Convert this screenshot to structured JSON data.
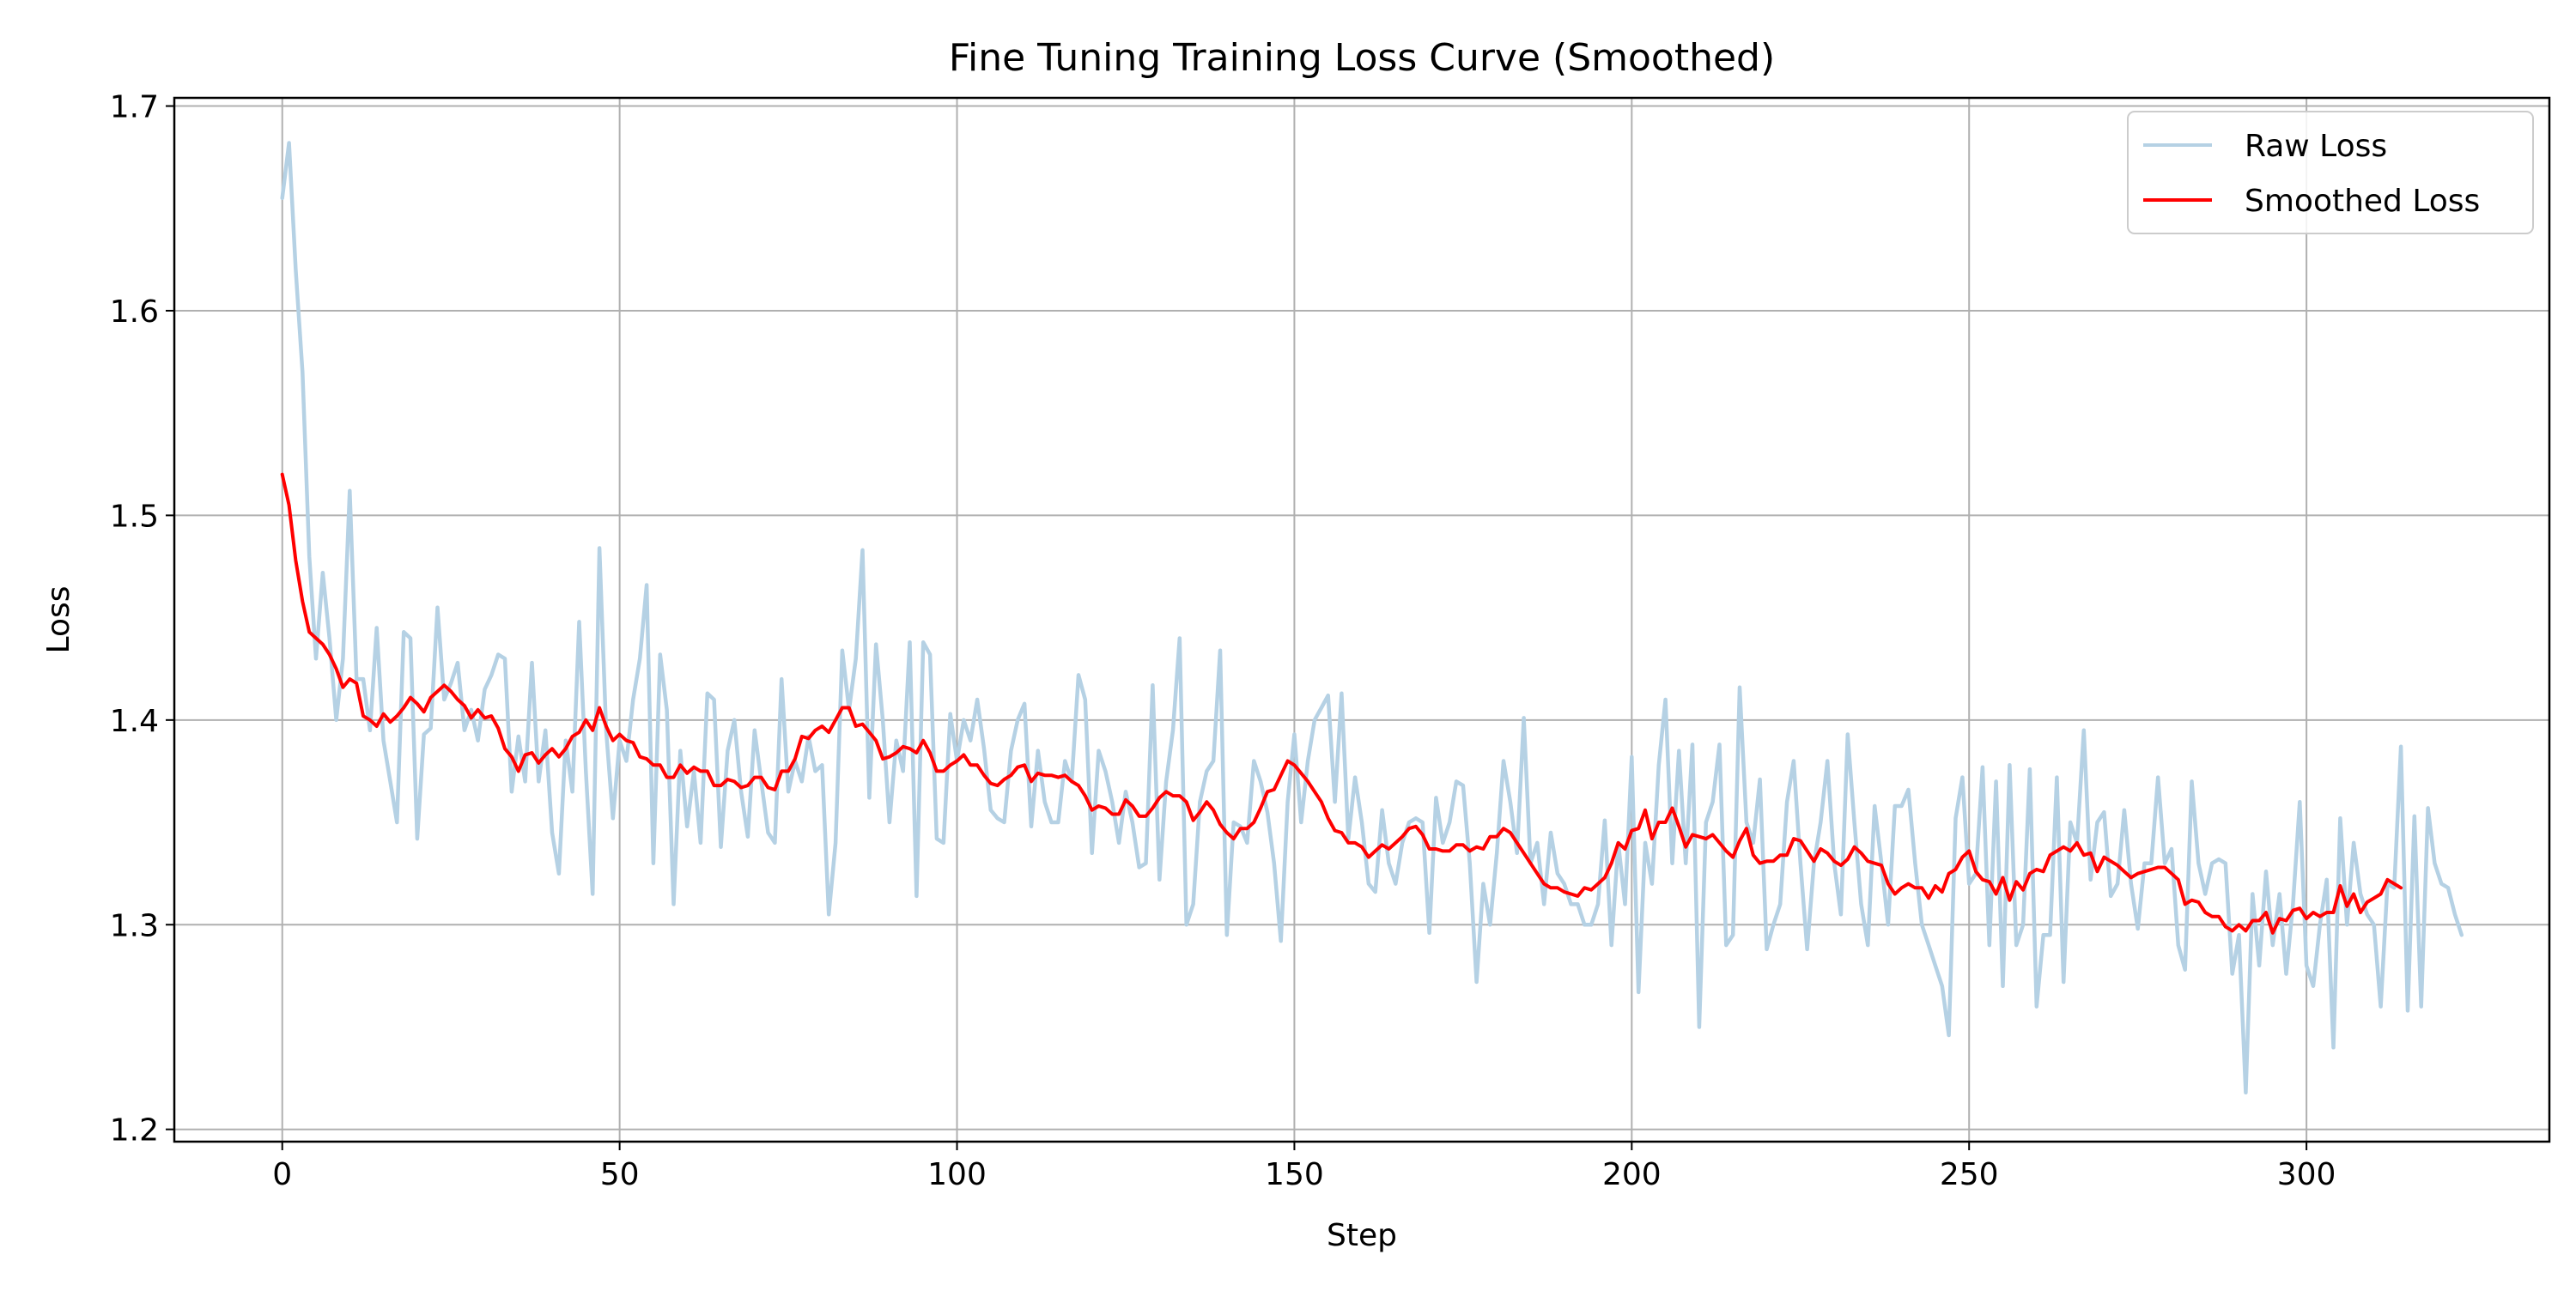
{
  "chart_data": {
    "type": "line",
    "title": "Fine Tuning Training Loss Curve (Smoothed)",
    "xlabel": "Step",
    "ylabel": "Loss",
    "xlim": [
      -16,
      336
    ],
    "ylim": [
      1.194,
      1.704
    ],
    "xticks": [
      0,
      50,
      100,
      150,
      200,
      250,
      300
    ],
    "xtick_labels": [
      "0",
      "50",
      "100",
      "150",
      "200",
      "250",
      "300"
    ],
    "yticks": [
      1.2,
      1.3,
      1.4,
      1.5,
      1.6,
      1.7
    ],
    "ytick_labels": [
      "1.2",
      "1.3",
      "1.4",
      "1.5",
      "1.6",
      "1.7"
    ],
    "grid": true,
    "legend_position": "top-right",
    "series": [
      {
        "name": "Raw Loss",
        "color": "#b5d1e4",
        "x_start": 0,
        "x_step": 1,
        "values": [
          1.655,
          1.682,
          1.62,
          1.57,
          1.48,
          1.43,
          1.472,
          1.44,
          1.4,
          1.43,
          1.512,
          1.42,
          1.42,
          1.395,
          1.445,
          1.39,
          1.37,
          1.35,
          1.443,
          1.44,
          1.342,
          1.393,
          1.396,
          1.455,
          1.41,
          1.418,
          1.428,
          1.395,
          1.405,
          1.39,
          1.415,
          1.422,
          1.432,
          1.43,
          1.365,
          1.392,
          1.37,
          1.428,
          1.37,
          1.395,
          1.345,
          1.325,
          1.39,
          1.365,
          1.448,
          1.375,
          1.315,
          1.484,
          1.395,
          1.352,
          1.39,
          1.38,
          1.41,
          1.43,
          1.466,
          1.33,
          1.432,
          1.405,
          1.31,
          1.385,
          1.348,
          1.375,
          1.34,
          1.413,
          1.41,
          1.338,
          1.385,
          1.4,
          1.365,
          1.343,
          1.395,
          1.37,
          1.345,
          1.34,
          1.42,
          1.365,
          1.38,
          1.37,
          1.392,
          1.375,
          1.378,
          1.305,
          1.34,
          1.434,
          1.405,
          1.43,
          1.483,
          1.362,
          1.437,
          1.4,
          1.35,
          1.39,
          1.375,
          1.438,
          1.314,
          1.438,
          1.432,
          1.342,
          1.34,
          1.403,
          1.38,
          1.4,
          1.39,
          1.41,
          1.386,
          1.356,
          1.352,
          1.35,
          1.385,
          1.4,
          1.408,
          1.348,
          1.385,
          1.36,
          1.35,
          1.35,
          1.38,
          1.37,
          1.422,
          1.41,
          1.335,
          1.385,
          1.375,
          1.36,
          1.34,
          1.365,
          1.35,
          1.328,
          1.33,
          1.417,
          1.322,
          1.37,
          1.395,
          1.44,
          1.3,
          1.31,
          1.36,
          1.375,
          1.38,
          1.434,
          1.295,
          1.35,
          1.348,
          1.34,
          1.38,
          1.37,
          1.355,
          1.33,
          1.292,
          1.36,
          1.393,
          1.35,
          1.38,
          1.4,
          1.406,
          1.412,
          1.36,
          1.413,
          1.342,
          1.372,
          1.35,
          1.32,
          1.316,
          1.356,
          1.33,
          1.32,
          1.34,
          1.35,
          1.352,
          1.35,
          1.296,
          1.362,
          1.34,
          1.35,
          1.37,
          1.368,
          1.33,
          1.272,
          1.32,
          1.3,
          1.335,
          1.38,
          1.36,
          1.335,
          1.401,
          1.33,
          1.34,
          1.31,
          1.345,
          1.325,
          1.32,
          1.31,
          1.31,
          1.3,
          1.3,
          1.31,
          1.351,
          1.29,
          1.34,
          1.31,
          1.382,
          1.267,
          1.34,
          1.32,
          1.378,
          1.41,
          1.33,
          1.385,
          1.33,
          1.388,
          1.25,
          1.35,
          1.36,
          1.388,
          1.29,
          1.295,
          1.416,
          1.35,
          1.34,
          1.371,
          1.288,
          1.3,
          1.31,
          1.36,
          1.38,
          1.33,
          1.288,
          1.33,
          1.35,
          1.38,
          1.33,
          1.305,
          1.393,
          1.35,
          1.31,
          1.29,
          1.358,
          1.33,
          1.3,
          1.358,
          1.358,
          1.366,
          1.33,
          1.3,
          1.29,
          1.28,
          1.27,
          1.246,
          1.352,
          1.372,
          1.32,
          1.325,
          1.377,
          1.29,
          1.37,
          1.27,
          1.378,
          1.29,
          1.3,
          1.376,
          1.26,
          1.295,
          1.295,
          1.372,
          1.272,
          1.35,
          1.34,
          1.395,
          1.322,
          1.35,
          1.355,
          1.314,
          1.32,
          1.356,
          1.32,
          1.298,
          1.33,
          1.33,
          1.372,
          1.33,
          1.337,
          1.29,
          1.278,
          1.37,
          1.33,
          1.315,
          1.33,
          1.332,
          1.33,
          1.276,
          1.295,
          1.218,
          1.315,
          1.28,
          1.326,
          1.29,
          1.315,
          1.276,
          1.31,
          1.36,
          1.28,
          1.27,
          1.3,
          1.322,
          1.24,
          1.352,
          1.3,
          1.34,
          1.315,
          1.305,
          1.3,
          1.26,
          1.32,
          1.318,
          1.387,
          1.258,
          1.353,
          1.26,
          1.357,
          1.33,
          1.32,
          1.318,
          1.305,
          1.295
        ]
      },
      {
        "name": "Smoothed Loss",
        "color": "#ff0000",
        "x_start": 0,
        "x_step": 1,
        "values": [
          1.52,
          1.505,
          1.478,
          1.458,
          1.443,
          1.44,
          1.437,
          1.432,
          1.425,
          1.416,
          1.42,
          1.418,
          1.402,
          1.4,
          1.397,
          1.403,
          1.399,
          1.402,
          1.406,
          1.411,
          1.408,
          1.404,
          1.411,
          1.414,
          1.417,
          1.414,
          1.41,
          1.407,
          1.401,
          1.405,
          1.401,
          1.402,
          1.396,
          1.386,
          1.382,
          1.375,
          1.383,
          1.384,
          1.379,
          1.383,
          1.386,
          1.382,
          1.386,
          1.392,
          1.394,
          1.4,
          1.395,
          1.406,
          1.397,
          1.39,
          1.393,
          1.39,
          1.389,
          1.382,
          1.381,
          1.378,
          1.378,
          1.372,
          1.372,
          1.378,
          1.374,
          1.377,
          1.375,
          1.375,
          1.368,
          1.368,
          1.371,
          1.37,
          1.367,
          1.368,
          1.372,
          1.372,
          1.367,
          1.366,
          1.375,
          1.375,
          1.381,
          1.392,
          1.391,
          1.395,
          1.397,
          1.394,
          1.4,
          1.406,
          1.406,
          1.397,
          1.398,
          1.394,
          1.39,
          1.381,
          1.382,
          1.384,
          1.387,
          1.386,
          1.384,
          1.39,
          1.384,
          1.375,
          1.375,
          1.378,
          1.38,
          1.383,
          1.378,
          1.378,
          1.373,
          1.369,
          1.368,
          1.371,
          1.373,
          1.377,
          1.378,
          1.37,
          1.374,
          1.373,
          1.373,
          1.372,
          1.373,
          1.37,
          1.368,
          1.363,
          1.356,
          1.358,
          1.357,
          1.354,
          1.354,
          1.361,
          1.358,
          1.353,
          1.353,
          1.357,
          1.362,
          1.365,
          1.363,
          1.363,
          1.36,
          1.351,
          1.355,
          1.36,
          1.356,
          1.349,
          1.345,
          1.342,
          1.347,
          1.347,
          1.35,
          1.357,
          1.365,
          1.366,
          1.373,
          1.38,
          1.378,
          1.374,
          1.37,
          1.365,
          1.36,
          1.352,
          1.346,
          1.345,
          1.34,
          1.34,
          1.338,
          1.333,
          1.336,
          1.339,
          1.337,
          1.34,
          1.343,
          1.347,
          1.348,
          1.344,
          1.337,
          1.337,
          1.336,
          1.336,
          1.339,
          1.339,
          1.336,
          1.338,
          1.337,
          1.343,
          1.343,
          1.347,
          1.345,
          1.34,
          1.335,
          1.33,
          1.325,
          1.32,
          1.318,
          1.318,
          1.316,
          1.315,
          1.314,
          1.318,
          1.317,
          1.32,
          1.323,
          1.33,
          1.34,
          1.337,
          1.346,
          1.347,
          1.356,
          1.342,
          1.35,
          1.35,
          1.357,
          1.348,
          1.338,
          1.344,
          1.343,
          1.342,
          1.344,
          1.34,
          1.336,
          1.333,
          1.341,
          1.347,
          1.334,
          1.33,
          1.331,
          1.331,
          1.334,
          1.334,
          1.342,
          1.341,
          1.336,
          1.331,
          1.337,
          1.335,
          1.331,
          1.329,
          1.332,
          1.338,
          1.335,
          1.331,
          1.33,
          1.329,
          1.32,
          1.315,
          1.318,
          1.32,
          1.318,
          1.318,
          1.313,
          1.319,
          1.316,
          1.325,
          1.327,
          1.333,
          1.336,
          1.326,
          1.322,
          1.321,
          1.315,
          1.323,
          1.312,
          1.321,
          1.317,
          1.325,
          1.327,
          1.326,
          1.334,
          1.336,
          1.338,
          1.336,
          1.34,
          1.334,
          1.335,
          1.326,
          1.333,
          1.331,
          1.329,
          1.326,
          1.323,
          1.325,
          1.326,
          1.327,
          1.328,
          1.328,
          1.325,
          1.322,
          1.31,
          1.312,
          1.311,
          1.306,
          1.304,
          1.304,
          1.299,
          1.297,
          1.3,
          1.297,
          1.302,
          1.302,
          1.306,
          1.296,
          1.303,
          1.302,
          1.307,
          1.308,
          1.303,
          1.306,
          1.304,
          1.306,
          1.306,
          1.319,
          1.309,
          1.315,
          1.306,
          1.311,
          1.313,
          1.315,
          1.322,
          1.32,
          1.318
        ]
      }
    ]
  }
}
